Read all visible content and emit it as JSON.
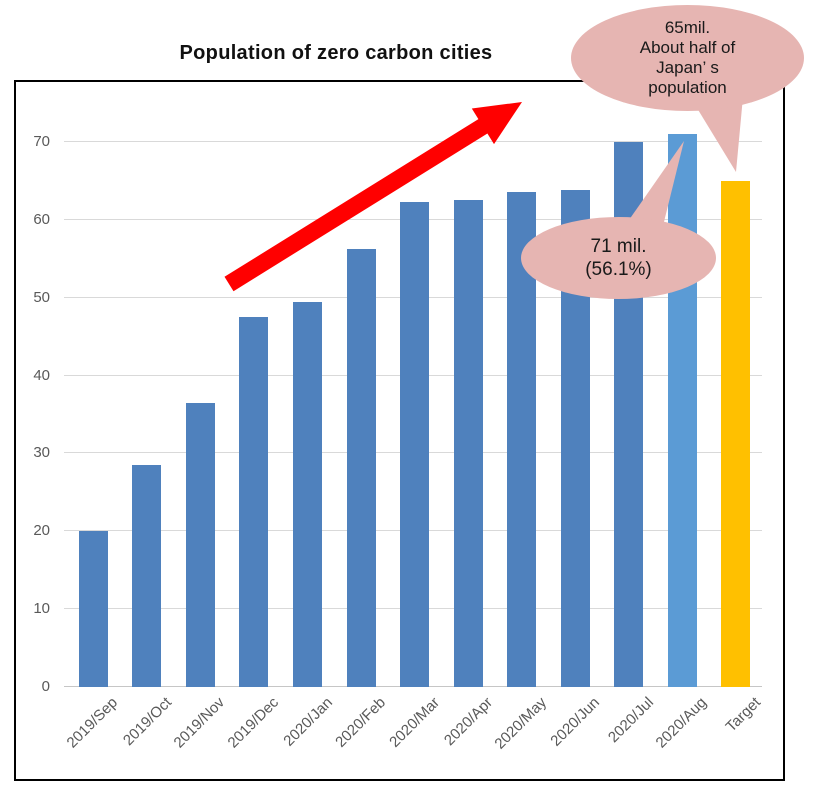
{
  "title": "Population of zero carbon cities",
  "chart_data": {
    "type": "bar",
    "title": "Population of zero carbon cities",
    "categories": [
      "2019/Sep",
      "2019/Oct",
      "2019/Nov",
      "2019/Dec",
      "2020/Jan",
      "2020/Feb",
      "2020/Mar",
      "2020/Apr",
      "2020/May",
      "2020/Jun",
      "2020/Jul",
      "2020/Aug",
      "Target"
    ],
    "values": [
      20,
      28.5,
      36.5,
      47.5,
      49.5,
      56.2,
      62.3,
      62.5,
      63.6,
      63.8,
      70,
      71,
      65
    ],
    "bar_colors": [
      "#4F81BD",
      "#4F81BD",
      "#4F81BD",
      "#4F81BD",
      "#4F81BD",
      "#4F81BD",
      "#4F81BD",
      "#4F81BD",
      "#4F81BD",
      "#4F81BD",
      "#4F81BD",
      "#5B9BD5",
      "#FFC000"
    ],
    "xlabel": "",
    "ylabel": "",
    "ylim": [
      0,
      75
    ],
    "yticks": [
      0,
      10,
      20,
      30,
      40,
      50,
      60,
      70
    ],
    "grid": true,
    "legend": false
  },
  "annotations": {
    "target_callout": {
      "lines": [
        "65mil.",
        "About half of",
        "Japan’ s",
        "population"
      ]
    },
    "aug_callout": {
      "lines": [
        "71 mil.",
        "(56.1%)"
      ]
    }
  },
  "colors": {
    "bar_default": "#4F81BD",
    "bar_august": "#5B9BD5",
    "bar_target": "#FFC000",
    "callout_fill": "#E6B5B2",
    "arrow": "#FF0000",
    "gridline": "#D9D9D9",
    "axis_text": "#595959",
    "frame_border": "#000000"
  }
}
